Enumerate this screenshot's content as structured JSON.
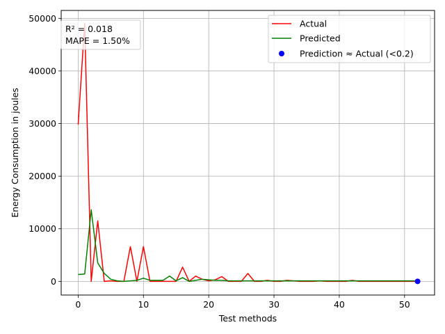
{
  "chart_data": {
    "type": "line",
    "xlabel": "Test methods",
    "ylabel": "Energy Consumption in joules",
    "xlim": [
      -2.6,
      54.6
    ],
    "ylim": [
      -2600,
      51500
    ],
    "xticks": [
      0,
      10,
      20,
      30,
      40,
      50
    ],
    "yticks": [
      0,
      10000,
      20000,
      30000,
      40000,
      50000
    ],
    "grid": true,
    "legend_position": "top-right",
    "annotation": {
      "lines": [
        "R² = 0.018",
        "MAPE = 1.50%"
      ],
      "position": "top-left"
    },
    "x": [
      0,
      1,
      2,
      3,
      4,
      5,
      6,
      7,
      8,
      9,
      10,
      11,
      12,
      13,
      14,
      15,
      16,
      17,
      18,
      19,
      20,
      21,
      22,
      23,
      24,
      25,
      26,
      27,
      28,
      29,
      30,
      31,
      32,
      33,
      34,
      35,
      36,
      37,
      38,
      39,
      40,
      41,
      42,
      43,
      44,
      45,
      46,
      47,
      48,
      49,
      50,
      51,
      52
    ],
    "series": [
      {
        "name": "Actual",
        "color": "#ff0000",
        "values": [
          29800,
          49000,
          0,
          11500,
          0,
          100,
          0,
          0,
          6600,
          0,
          6600,
          0,
          0,
          0,
          0,
          0,
          2700,
          0,
          1000,
          400,
          100,
          300,
          900,
          0,
          0,
          0,
          1500,
          0,
          0,
          200,
          0,
          0,
          200,
          100,
          0,
          0,
          0,
          100,
          0,
          0,
          0,
          0,
          200,
          0,
          0,
          0,
          0,
          0,
          0,
          0,
          0,
          0,
          0
        ]
      },
      {
        "name": "Predicted",
        "color": "#008000",
        "values": [
          1300,
          1400,
          13600,
          3500,
          1500,
          400,
          100,
          0,
          100,
          200,
          600,
          200,
          200,
          200,
          1000,
          100,
          700,
          0,
          200,
          400,
          300,
          200,
          200,
          100,
          100,
          100,
          100,
          100,
          100,
          100,
          100,
          100,
          100,
          100,
          100,
          100,
          100,
          100,
          100,
          100,
          100,
          100,
          100,
          100,
          100,
          100,
          100,
          100,
          100,
          100,
          100,
          100,
          100
        ]
      }
    ],
    "highlight_points": {
      "name": "Prediction ≈ Actual (<0.2)",
      "color": "#0000ff",
      "points": [
        [
          52,
          0
        ]
      ]
    }
  }
}
